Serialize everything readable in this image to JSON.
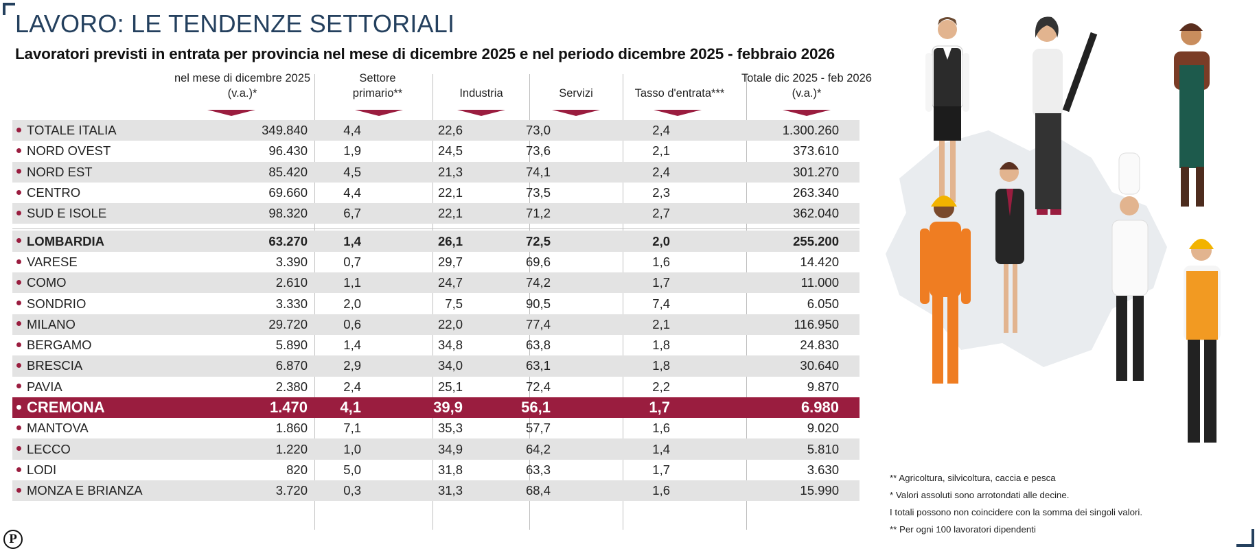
{
  "title": "LAVORO: LE TENDENZE SETTORIALI",
  "subtitle": "Lavoratori previsti in entrata per provincia nel mese di dicembre 2025 e nel periodo dicembre 2025 - febbraio 2026",
  "headers": [
    "nel mese di dicembre 2025 (v.a.)*",
    "Settore primario**",
    "Industria",
    "Servizi",
    "Tasso d'entrata***",
    "Totale dic 2025 - feb 2026 (v.a.)*"
  ],
  "colors": {
    "accent": "#9a1d3f",
    "title": "#24405e",
    "shade": "#e3e3e3"
  },
  "chart_data": {
    "type": "table",
    "title": "LAVORO: LE TENDENZE SETTORIALI",
    "columns": [
      "nel mese di dicembre 2025 (v.a.)*",
      "Settore primario**",
      "Industria",
      "Servizi",
      "Tasso d'entrata***",
      "Totale dic 2025 - feb 2026 (v.a.)*"
    ],
    "rows": [
      {
        "name": "TOTALE ITALIA",
        "values": [
          "349.840",
          "4,4",
          "22,6",
          "73,0",
          "2,4",
          "1.300.260"
        ]
      },
      {
        "name": "NORD OVEST",
        "values": [
          "96.430",
          "1,9",
          "24,5",
          "73,6",
          "2,1",
          "373.610"
        ]
      },
      {
        "name": "NORD EST",
        "values": [
          "85.420",
          "4,5",
          "21,3",
          "74,1",
          "2,4",
          "301.270"
        ]
      },
      {
        "name": "CENTRO",
        "values": [
          "69.660",
          "4,4",
          "22,1",
          "73,5",
          "2,3",
          "263.340"
        ]
      },
      {
        "name": "SUD E ISOLE",
        "values": [
          "98.320",
          "6,7",
          "22,1",
          "71,2",
          "2,7",
          "362.040"
        ]
      },
      {
        "name": "LOMBARDIA",
        "values": [
          "63.270",
          "1,4",
          "26,1",
          "72,5",
          "2,0",
          "255.200"
        ]
      },
      {
        "name": "VARESE",
        "values": [
          "3.390",
          "0,7",
          "29,7",
          "69,6",
          "1,6",
          "14.420"
        ]
      },
      {
        "name": "COMO",
        "values": [
          "2.610",
          "1,1",
          "24,7",
          "74,2",
          "1,7",
          "11.000"
        ]
      },
      {
        "name": "SONDRIO",
        "values": [
          "3.330",
          "2,0",
          "7,5",
          "90,5",
          "7,4",
          "6.050"
        ]
      },
      {
        "name": "MILANO",
        "values": [
          "29.720",
          "0,6",
          "22,0",
          "77,4",
          "2,1",
          "116.950"
        ]
      },
      {
        "name": "BERGAMO",
        "values": [
          "5.890",
          "1,4",
          "34,8",
          "63,8",
          "1,8",
          "24.830"
        ]
      },
      {
        "name": "BRESCIA",
        "values": [
          "6.870",
          "2,9",
          "34,0",
          "63,1",
          "1,8",
          "30.640"
        ]
      },
      {
        "name": "PAVIA",
        "values": [
          "2.380",
          "2,4",
          "25,1",
          "72,4",
          "2,2",
          "9.870"
        ]
      },
      {
        "name": "CREMONA",
        "values": [
          "1.470",
          "4,1",
          "39,9",
          "56,1",
          "1,7",
          "6.980"
        ]
      },
      {
        "name": "MANTOVA",
        "values": [
          "1.860",
          "7,1",
          "35,3",
          "57,7",
          "1,6",
          "9.020"
        ]
      },
      {
        "name": "LECCO",
        "values": [
          "1.220",
          "1,0",
          "34,9",
          "64,2",
          "1,4",
          "5.810"
        ]
      },
      {
        "name": "LODI",
        "values": [
          "820",
          "5,0",
          "31,8",
          "63,3",
          "1,7",
          "3.630"
        ]
      },
      {
        "name": "MONZA E BRIANZA",
        "values": [
          "3.720",
          "0,3",
          "31,3",
          "68,4",
          "1,6",
          "15.990"
        ]
      }
    ]
  },
  "notes": [
    "** Agricoltura, silvicoltura, caccia e pesca",
    "* Valori assoluti sono arrotondati alle decine.",
    "I totali possono non coincidere con la somma dei singoli valori.",
    "** Per ogni 100 lavoratori dipendenti"
  ],
  "logo": "P"
}
